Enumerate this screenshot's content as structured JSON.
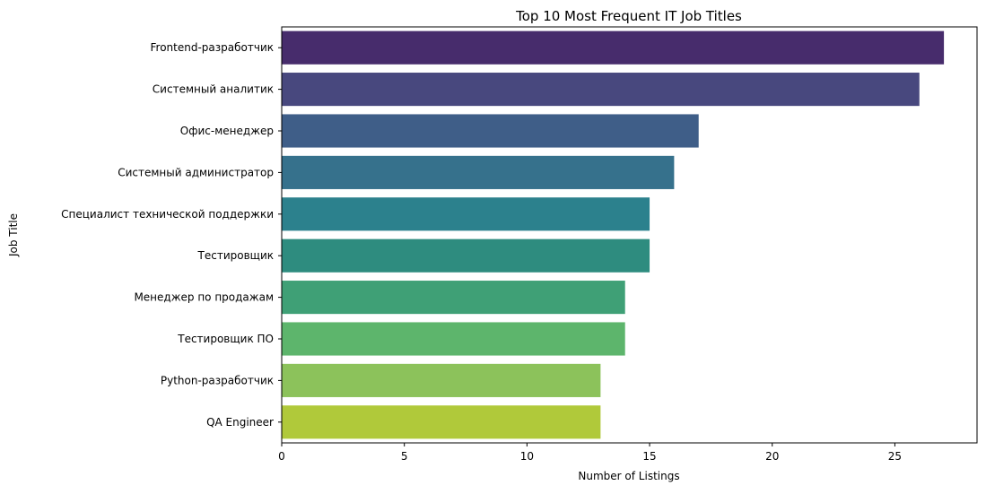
{
  "chart_data": {
    "type": "bar",
    "orientation": "horizontal",
    "title": "Top 10 Most Frequent IT Job Titles",
    "xlabel": "Number of Listings",
    "ylabel": "Job Title",
    "categories": [
      "Frontend-разработчик",
      "Системный аналитик",
      "Офис-менеджер",
      "Системный администратор",
      "Специалист технической поддержки",
      "Тестировщик",
      "Менеджер по продажам",
      "Тестировщик ПО",
      "Python-разработчик",
      "QA Engineer"
    ],
    "values": [
      27,
      26,
      17,
      16,
      15,
      15,
      14,
      14,
      13,
      13
    ],
    "colors": [
      "#472c6c",
      "#48487e",
      "#3f5e88",
      "#36718c",
      "#2c818d",
      "#2e8c7f",
      "#3fa076",
      "#5db56c",
      "#8cc25b",
      "#b0c93a"
    ],
    "xlim": [
      0,
      28.35
    ],
    "xticks": [
      0,
      5,
      10,
      15,
      20,
      25
    ],
    "grid": false,
    "legend": "none"
  }
}
